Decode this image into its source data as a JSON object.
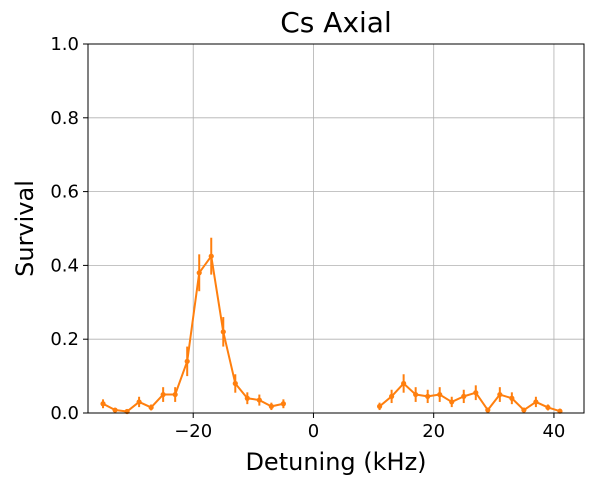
{
  "chart_data": {
    "type": "line",
    "title": "Cs Axial",
    "xlabel": "Detuning (kHz)",
    "ylabel": "Survival",
    "xlim": [
      -37.5,
      45
    ],
    "ylim": [
      0,
      1.0
    ],
    "xticks": [
      -20,
      0,
      20,
      40
    ],
    "xtick_labels": [
      "−20",
      "0",
      "20",
      "40"
    ],
    "yticks": [
      0.0,
      0.2,
      0.4,
      0.6,
      0.8,
      1.0
    ],
    "ytick_labels": [
      "0.0",
      "0.2",
      "0.4",
      "0.6",
      "0.8",
      "1.0"
    ],
    "grid": true,
    "legend": false,
    "series": [
      {
        "color": "#ff7f0e",
        "marker": "circle",
        "segments": [
          [
            {
              "x": -35,
              "y": 0.025,
              "err": 0.012
            },
            {
              "x": -33,
              "y": 0.008,
              "err": 0.005
            },
            {
              "x": -31,
              "y": 0.004,
              "err": 0.004
            },
            {
              "x": -29,
              "y": 0.03,
              "err": 0.014
            },
            {
              "x": -27,
              "y": 0.015,
              "err": 0.008
            },
            {
              "x": -25,
              "y": 0.05,
              "err": 0.02
            },
            {
              "x": -23,
              "y": 0.05,
              "err": 0.02
            },
            {
              "x": -21,
              "y": 0.14,
              "err": 0.04
            },
            {
              "x": -19,
              "y": 0.38,
              "err": 0.05
            },
            {
              "x": -17,
              "y": 0.425,
              "err": 0.05
            },
            {
              "x": -15,
              "y": 0.22,
              "err": 0.04
            },
            {
              "x": -13,
              "y": 0.08,
              "err": 0.025
            },
            {
              "x": -11,
              "y": 0.04,
              "err": 0.016
            },
            {
              "x": -9,
              "y": 0.035,
              "err": 0.015
            },
            {
              "x": -7,
              "y": 0.018,
              "err": 0.01
            },
            {
              "x": -5,
              "y": 0.025,
              "err": 0.012
            }
          ],
          [
            {
              "x": 11,
              "y": 0.018,
              "err": 0.01
            },
            {
              "x": 13,
              "y": 0.045,
              "err": 0.018
            },
            {
              "x": 15,
              "y": 0.08,
              "err": 0.025
            },
            {
              "x": 17,
              "y": 0.05,
              "err": 0.02
            },
            {
              "x": 19,
              "y": 0.045,
              "err": 0.018
            },
            {
              "x": 21,
              "y": 0.05,
              "err": 0.02
            },
            {
              "x": 23,
              "y": 0.03,
              "err": 0.014
            },
            {
              "x": 25,
              "y": 0.045,
              "err": 0.018
            },
            {
              "x": 27,
              "y": 0.055,
              "err": 0.02
            },
            {
              "x": 29,
              "y": 0.008,
              "err": 0.006
            },
            {
              "x": 31,
              "y": 0.05,
              "err": 0.02
            },
            {
              "x": 33,
              "y": 0.04,
              "err": 0.016
            },
            {
              "x": 35,
              "y": 0.008,
              "err": 0.006
            },
            {
              "x": 37,
              "y": 0.03,
              "err": 0.014
            },
            {
              "x": 39,
              "y": 0.015,
              "err": 0.008
            },
            {
              "x": 41,
              "y": 0.005,
              "err": 0.004
            }
          ]
        ]
      }
    ]
  }
}
